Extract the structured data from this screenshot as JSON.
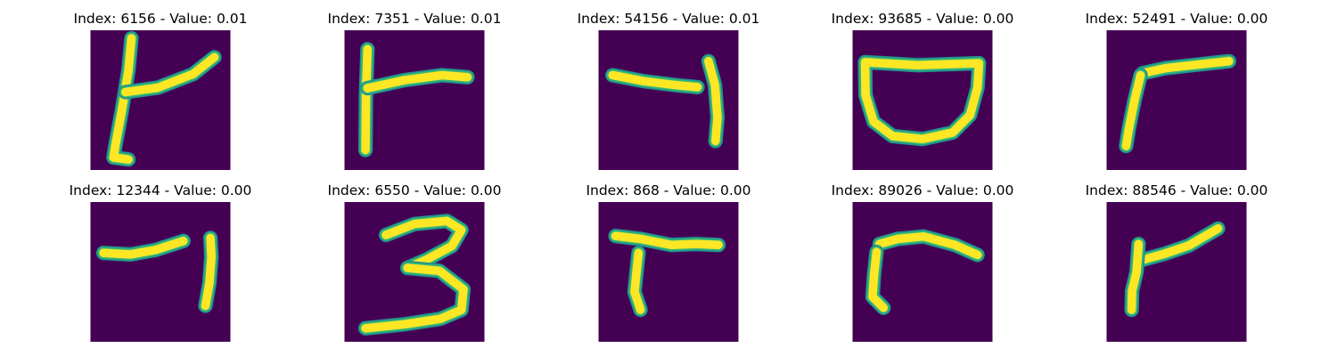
{
  "colors": {
    "background": "#440154",
    "stroke_core": "#fde725",
    "stroke_edge": "#35b779",
    "stroke_edge2": "#21918c"
  },
  "panels": [
    {
      "title": "Index: 6156 - Value: 0.01",
      "digit": "handwritten-1-with-arm"
    },
    {
      "title": "Index: 7351 - Value: 0.01",
      "digit": "handwritten-1-with-arm"
    },
    {
      "title": "Index: 54156 - Value: 0.01",
      "digit": "handwritten-7"
    },
    {
      "title": "Index: 93685 - Value: 0.00",
      "digit": "handwritten-0-bowl"
    },
    {
      "title": "Index: 52491 - Value: 0.00",
      "digit": "handwritten-7-reversed"
    },
    {
      "title": "Index: 12344 - Value: 0.00",
      "digit": "handwritten-7"
    },
    {
      "title": "Index: 6550 - Value: 0.00",
      "digit": "handwritten-3"
    },
    {
      "title": "Index: 868 - Value: 0.00",
      "digit": "handwritten-7-reversed"
    },
    {
      "title": "Index: 89026 - Value: 0.00",
      "digit": "handwritten-7-reversed"
    },
    {
      "title": "Index: 88546 - Value: 0.00",
      "digit": "handwritten-1-with-arm"
    }
  ]
}
